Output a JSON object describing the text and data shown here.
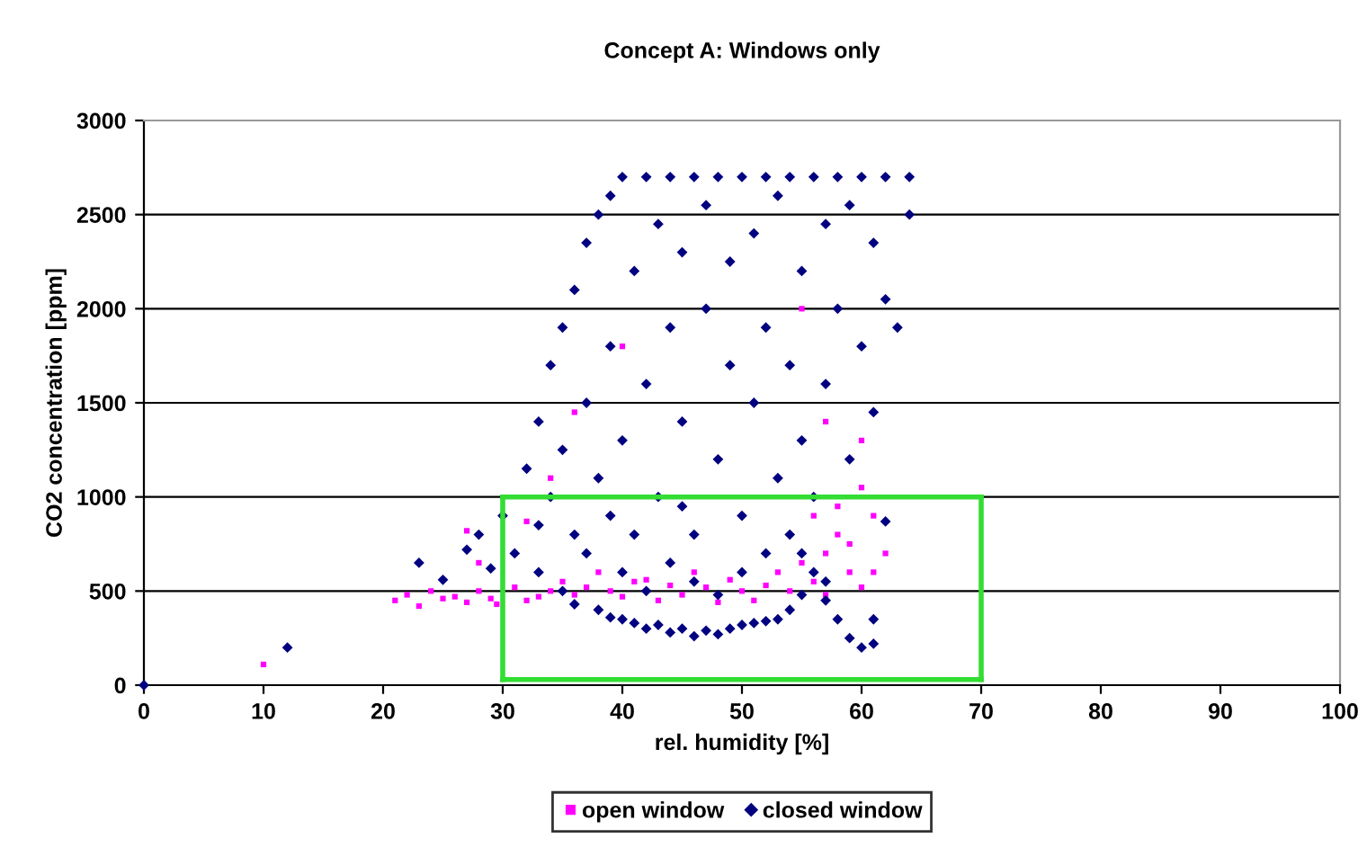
{
  "chart_data": {
    "type": "scatter",
    "title": "Concept A: Windows only",
    "xlabel": "rel. humidity [%]",
    "ylabel": "CO2 concentration [ppm]",
    "xlim": [
      0,
      100
    ],
    "xticks": [
      0,
      10,
      20,
      30,
      40,
      50,
      60,
      70,
      80,
      90,
      100
    ],
    "ylim": [
      0,
      3000
    ],
    "yticks": [
      0,
      500,
      1000,
      1500,
      2000,
      2500,
      3000
    ],
    "grid": "y",
    "legend": "bottom",
    "series": [
      {
        "name": "open window",
        "color": "#ff00ff",
        "marker": "square",
        "x": [
          10,
          21,
          22,
          23,
          24,
          25,
          26,
          27,
          28,
          29,
          29.5,
          31,
          32,
          33,
          34,
          35,
          36,
          37,
          38,
          39,
          40,
          41,
          42,
          43,
          44,
          45,
          46,
          47,
          48,
          49,
          50,
          51,
          52,
          53,
          54,
          55,
          56,
          57,
          58,
          59,
          60,
          58,
          60,
          61,
          59,
          56,
          60,
          62,
          28,
          34,
          40,
          27,
          32,
          36,
          55,
          57,
          61,
          57
        ],
        "values": [
          110,
          450,
          480,
          420,
          500,
          460,
          470,
          440,
          500,
          460,
          430,
          520,
          450,
          470,
          500,
          550,
          480,
          520,
          600,
          500,
          470,
          550,
          560,
          450,
          530,
          480,
          600,
          520,
          440,
          560,
          500,
          450,
          530,
          600,
          500,
          650,
          550,
          700,
          800,
          600,
          520,
          950,
          1050,
          900,
          750,
          900,
          1300,
          700,
          650,
          1100,
          1800,
          820,
          870,
          1450,
          2000,
          1400,
          600,
          480
        ]
      },
      {
        "name": "closed window",
        "color": "#000080",
        "marker": "diamond",
        "x": [
          0,
          12,
          23,
          25,
          27,
          28,
          29,
          30,
          31,
          32,
          33,
          33,
          34,
          34,
          35,
          35,
          36,
          36,
          37,
          37,
          38,
          38,
          39,
          39,
          40,
          40,
          41,
          42,
          42,
          43,
          43,
          44,
          44,
          45,
          45,
          46,
          46,
          47,
          47,
          48,
          48,
          49,
          49,
          50,
          50,
          51,
          51,
          52,
          52,
          53,
          53,
          54,
          54,
          55,
          55,
          56,
          56,
          57,
          57,
          58,
          58,
          59,
          59,
          60,
          60,
          61,
          61,
          62,
          62,
          63,
          64,
          64,
          62,
          33,
          35,
          36,
          38,
          39,
          40,
          41,
          42,
          43,
          44,
          45,
          46,
          47,
          48,
          49,
          50,
          51,
          52,
          53,
          54,
          55,
          56,
          57,
          57,
          58,
          59,
          60,
          61,
          61,
          37,
          40,
          42,
          44,
          46,
          48,
          50,
          52,
          54,
          45,
          41,
          39,
          55
        ],
        "values": [
          0,
          200,
          650,
          560,
          720,
          800,
          620,
          900,
          700,
          1150,
          850,
          1400,
          1000,
          1700,
          1250,
          1900,
          800,
          2100,
          1500,
          2350,
          1100,
          2500,
          1800,
          2600,
          2700,
          1300,
          2200,
          2700,
          1600,
          2450,
          1000,
          2700,
          1900,
          2300,
          1400,
          2700,
          800,
          2000,
          2550,
          1200,
          2700,
          1700,
          2250,
          2700,
          900,
          1500,
          2400,
          2700,
          1900,
          1100,
          2600,
          2700,
          1700,
          2200,
          1300,
          2700,
          1000,
          2450,
          1600,
          2700,
          2000,
          1200,
          2550,
          2700,
          1800,
          2350,
          1450,
          2700,
          2050,
          1900,
          2700,
          2500,
          870,
          600,
          500,
          430,
          400,
          360,
          350,
          330,
          300,
          320,
          280,
          300,
          260,
          290,
          270,
          300,
          320,
          330,
          340,
          350,
          400,
          480,
          600,
          550,
          450,
          350,
          250,
          200,
          220,
          350,
          700,
          600,
          500,
          650,
          550,
          480,
          600,
          700,
          800,
          950,
          800,
          900,
          700
        ]
      },
      {
        "type": "line",
        "color": "#33dd33",
        "marker": "none",
        "line_style": "solid",
        "x": [
          30,
          70
        ],
        "values": [
          30,
          30
        ]
      },
      {
        "type": "line",
        "color": "#33dd33",
        "marker": "none",
        "line_style": "solid",
        "x": [
          30,
          70
        ],
        "values": [
          1000,
          1000
        ]
      },
      {
        "type": "line",
        "color": "#33dd33",
        "marker": "none",
        "line_style": "solid",
        "x": [
          30,
          30
        ],
        "values": [
          30,
          1000
        ]
      },
      {
        "type": "line",
        "color": "#33dd33",
        "marker": "none",
        "line_style": "solid",
        "x": [
          70,
          70
        ],
        "values": [
          30,
          1000
        ]
      }
    ]
  }
}
